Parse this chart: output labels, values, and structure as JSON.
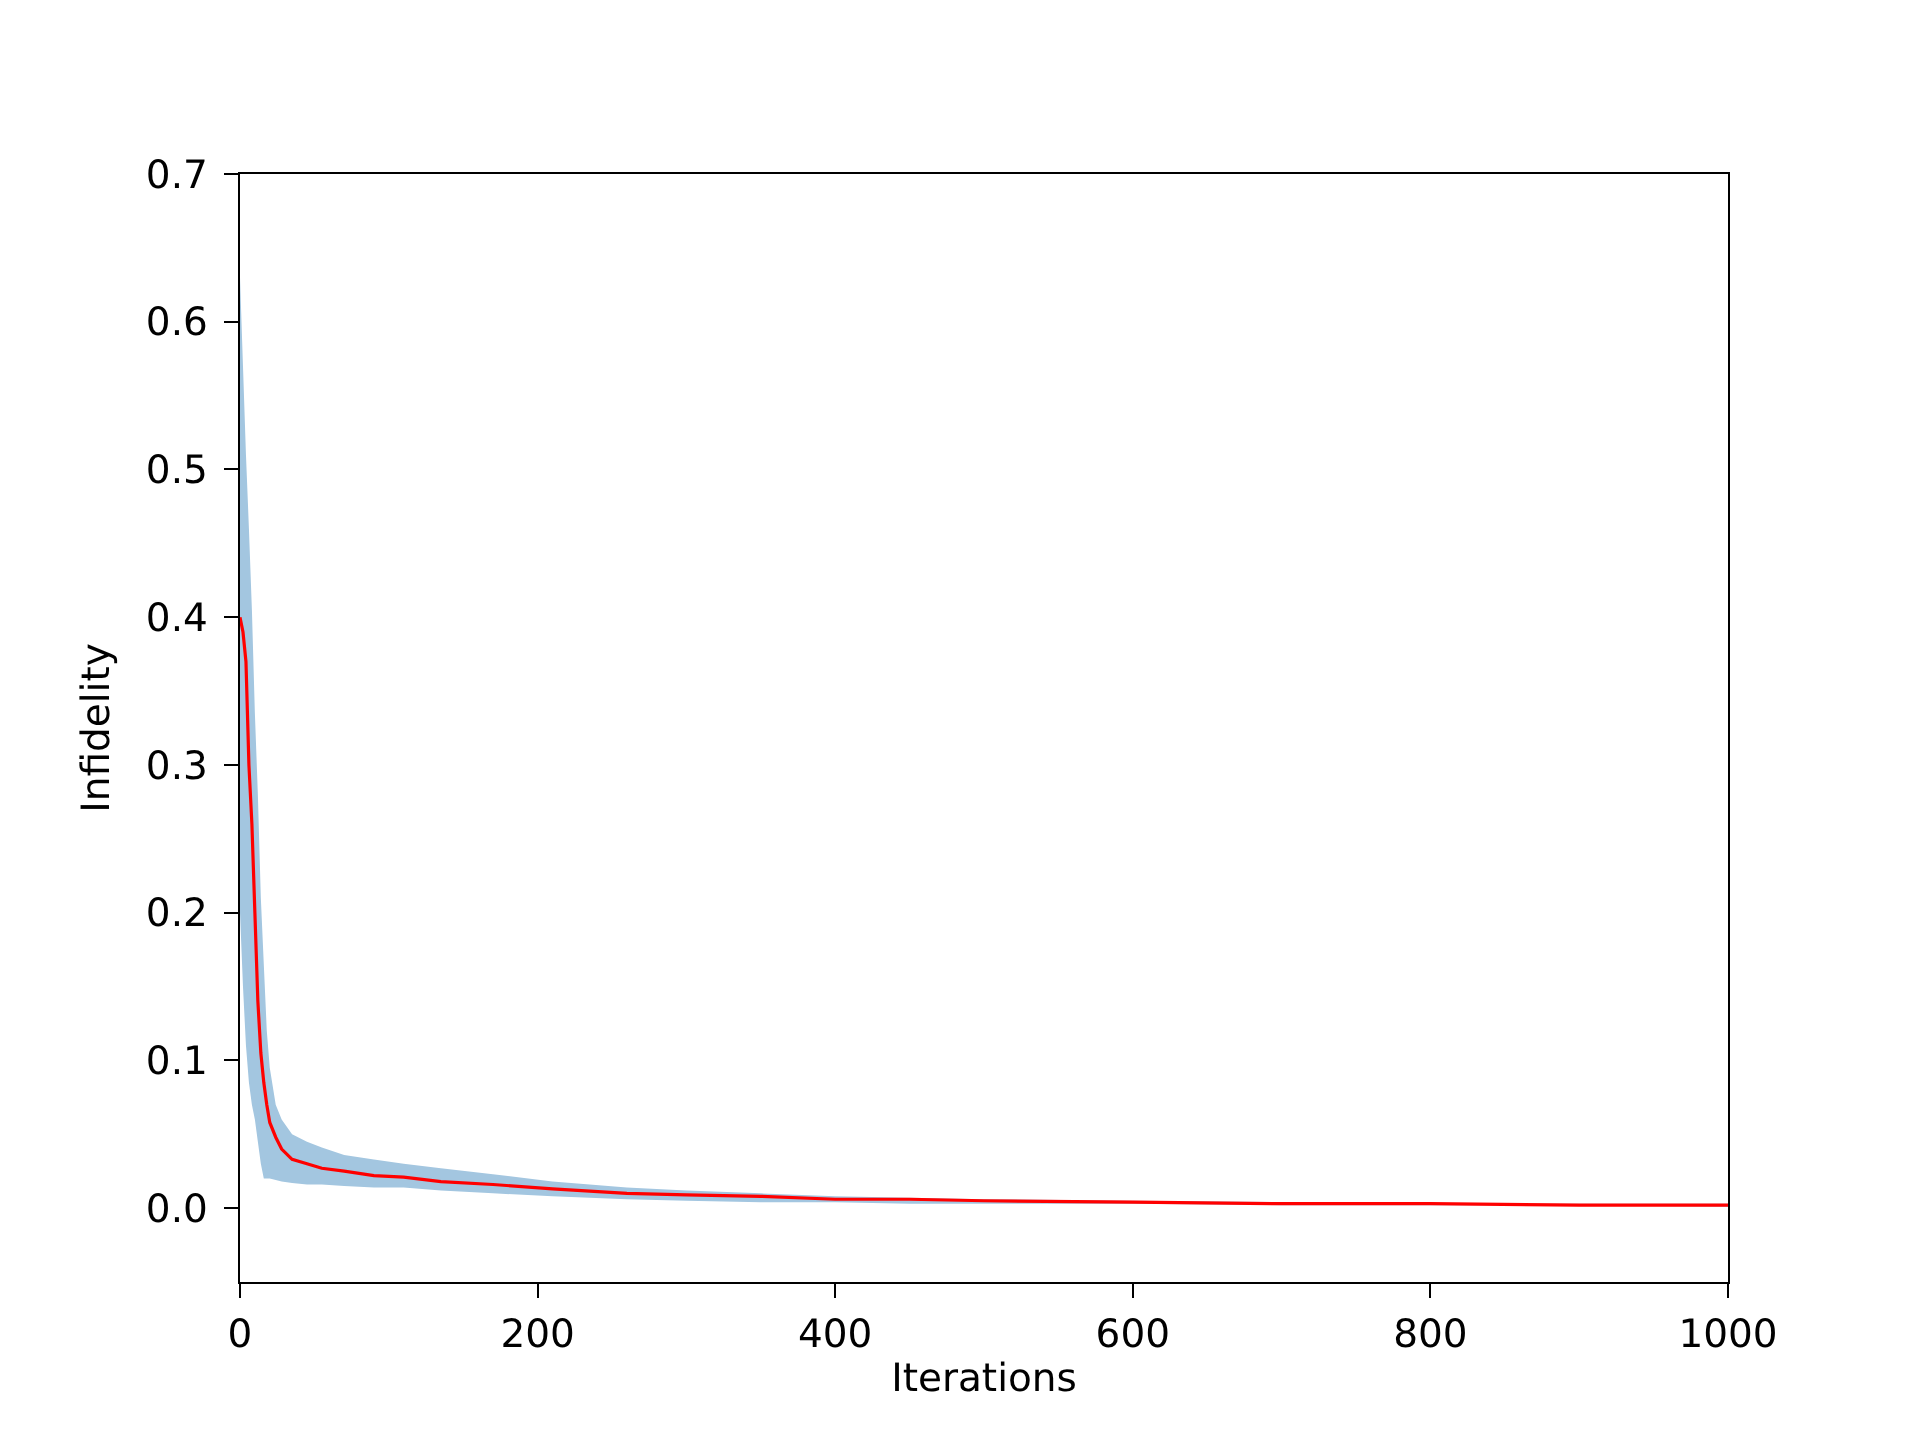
{
  "chart_data": {
    "type": "line",
    "xlabel": "Iterations",
    "ylabel": "Infidelity",
    "x": [
      0,
      2,
      4,
      6,
      8,
      10,
      12,
      14,
      16,
      18,
      20,
      24,
      28,
      35,
      45,
      55,
      70,
      90,
      110,
      135,
      170,
      210,
      260,
      300,
      350,
      400,
      450,
      500,
      600,
      700,
      800,
      900,
      1000
    ],
    "series": [
      {
        "color": "#ff0000",
        "values": [
          0.4,
          0.39,
          0.37,
          0.3,
          0.26,
          0.2,
          0.14,
          0.105,
          0.085,
          0.07,
          0.058,
          0.048,
          0.04,
          0.033,
          0.03,
          0.027,
          0.025,
          0.022,
          0.021,
          0.018,
          0.016,
          0.013,
          0.01,
          0.009,
          0.008,
          0.006,
          0.006,
          0.005,
          0.004,
          0.003,
          0.003,
          0.002,
          0.002
        ],
        "lower": [
          0.2,
          0.15,
          0.11,
          0.085,
          0.07,
          0.06,
          0.045,
          0.03,
          0.02,
          0.02,
          0.02,
          0.019,
          0.018,
          0.017,
          0.016,
          0.016,
          0.015,
          0.014,
          0.014,
          0.012,
          0.01,
          0.008,
          0.006,
          0.005,
          0.004,
          0.004,
          0.003,
          0.003,
          0.003,
          0.002,
          0.002,
          0.002,
          0.001
        ],
        "upper": [
          0.63,
          0.57,
          0.51,
          0.46,
          0.405,
          0.335,
          0.28,
          0.21,
          0.165,
          0.12,
          0.095,
          0.07,
          0.06,
          0.05,
          0.045,
          0.041,
          0.036,
          0.033,
          0.03,
          0.027,
          0.023,
          0.018,
          0.014,
          0.012,
          0.01,
          0.008,
          0.007,
          0.006,
          0.005,
          0.004,
          0.003,
          0.003,
          0.003
        ]
      }
    ],
    "xlim": [
      0,
      1000
    ],
    "xticks": [
      0,
      200,
      400,
      600,
      800,
      1000
    ],
    "ylim": [
      -0.05,
      0.7
    ],
    "yticks": [
      {
        "value": 0,
        "label": "0.0"
      },
      0.1,
      0.2,
      0.3,
      0.4,
      0.5,
      0.6,
      0.7
    ],
    "marker": "none",
    "line_style": "solid"
  }
}
